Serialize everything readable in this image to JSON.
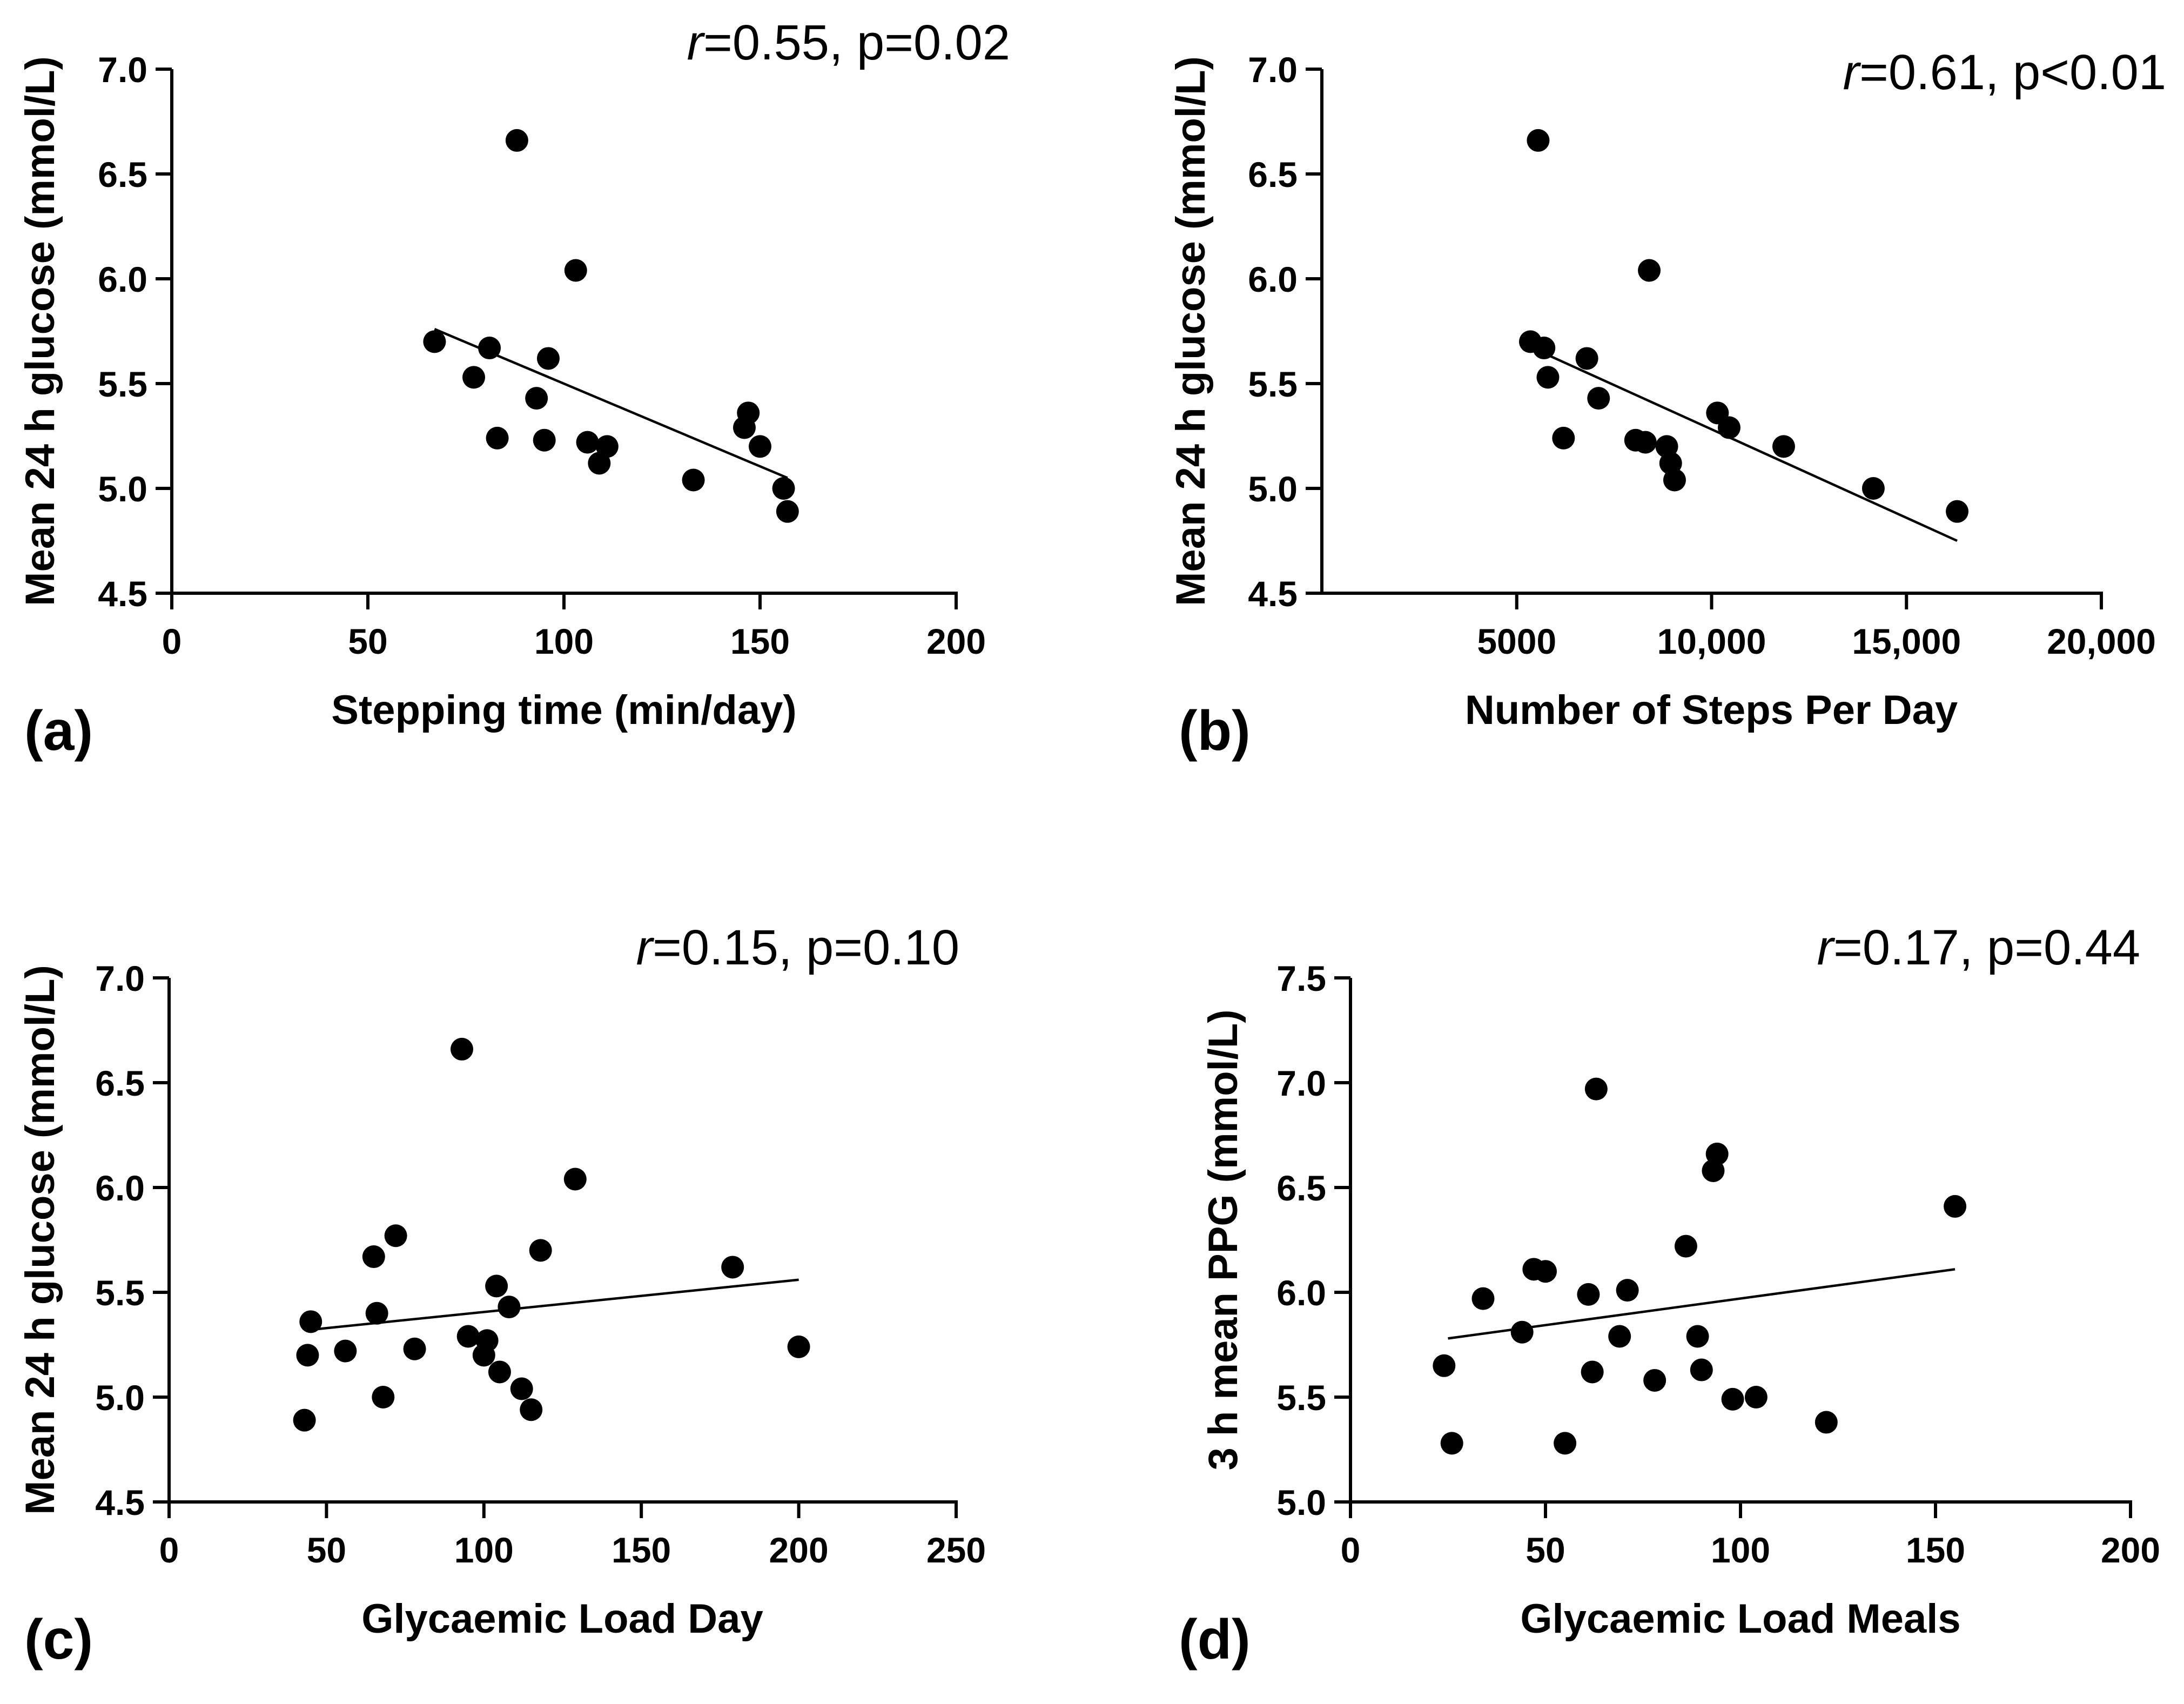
{
  "chart_data": [
    {
      "type": "scatter",
      "panel_label": "(a)",
      "annotation": {
        "r_symbol": "r",
        "text": "=0.55, p=0.02"
      },
      "xlabel": "Stepping time (min/day)",
      "ylabel": "Mean 24 h glucose (mmol/L)",
      "xlim": [
        0,
        200
      ],
      "ylim": [
        4.5,
        7.0
      ],
      "x_ticks": [
        {
          "value": 0,
          "label": "0"
        },
        {
          "value": 50,
          "label": "50"
        },
        {
          "value": 100,
          "label": "100"
        },
        {
          "value": 150,
          "label": "150"
        },
        {
          "value": 200,
          "label": "200"
        }
      ],
      "y_ticks": [
        {
          "value": 4.5,
          "label": "4.5"
        },
        {
          "value": 5.0,
          "label": "5.0"
        },
        {
          "value": 5.5,
          "label": "5.5"
        },
        {
          "value": 6.0,
          "label": "6.0"
        },
        {
          "value": 6.5,
          "label": "6.5"
        },
        {
          "value": 7.0,
          "label": "7.0"
        }
      ],
      "points": [
        {
          "x": 67,
          "y": 5.7
        },
        {
          "x": 77,
          "y": 5.53
        },
        {
          "x": 81,
          "y": 5.67
        },
        {
          "x": 83,
          "y": 5.24
        },
        {
          "x": 88,
          "y": 6.66
        },
        {
          "x": 93,
          "y": 5.43
        },
        {
          "x": 95,
          "y": 5.23
        },
        {
          "x": 96,
          "y": 5.62
        },
        {
          "x": 103,
          "y": 6.04
        },
        {
          "x": 106,
          "y": 5.22
        },
        {
          "x": 109,
          "y": 5.12
        },
        {
          "x": 111,
          "y": 5.2
        },
        {
          "x": 133,
          "y": 5.04
        },
        {
          "x": 146,
          "y": 5.29
        },
        {
          "x": 147,
          "y": 5.36
        },
        {
          "x": 150,
          "y": 5.2
        },
        {
          "x": 156,
          "y": 5.0
        },
        {
          "x": 157,
          "y": 4.89
        }
      ],
      "fit_line": {
        "x": [
          67,
          157
        ],
        "y": [
          5.76,
          5.05
        ]
      },
      "colors": {
        "marker": "#000000",
        "line": "#000000"
      }
    },
    {
      "type": "scatter",
      "panel_label": "(b)",
      "annotation": {
        "r_symbol": "r",
        "text": "=0.61, p<0.01"
      },
      "xlabel": "Number of Steps Per Day",
      "ylabel": "Mean 24 h glucose (mmol/L)",
      "xlim": [
        0,
        20000
      ],
      "ylim": [
        4.5,
        7.0
      ],
      "x_ticks": [
        {
          "value": 5000,
          "label": "5000"
        },
        {
          "value": 10000,
          "label": "10,000"
        },
        {
          "value": 15000,
          "label": "15,000"
        },
        {
          "value": 20000,
          "label": "20,000"
        }
      ],
      "y_ticks": [
        {
          "value": 4.5,
          "label": "4.5"
        },
        {
          "value": 5.0,
          "label": "5.0"
        },
        {
          "value": 5.5,
          "label": "5.5"
        },
        {
          "value": 6.0,
          "label": "6.0"
        },
        {
          "value": 6.5,
          "label": "6.5"
        },
        {
          "value": 7.0,
          "label": "7.0"
        }
      ],
      "points": [
        {
          "x": 5350,
          "y": 5.7
        },
        {
          "x": 5550,
          "y": 6.66
        },
        {
          "x": 5700,
          "y": 5.67
        },
        {
          "x": 5800,
          "y": 5.53
        },
        {
          "x": 6200,
          "y": 5.24
        },
        {
          "x": 6800,
          "y": 5.62
        },
        {
          "x": 7100,
          "y": 5.43
        },
        {
          "x": 8050,
          "y": 5.23
        },
        {
          "x": 8300,
          "y": 5.22
        },
        {
          "x": 8400,
          "y": 6.04
        },
        {
          "x": 8850,
          "y": 5.2
        },
        {
          "x": 8950,
          "y": 5.12
        },
        {
          "x": 9050,
          "y": 5.04
        },
        {
          "x": 10150,
          "y": 5.36
        },
        {
          "x": 10450,
          "y": 5.29
        },
        {
          "x": 11850,
          "y": 5.2
        },
        {
          "x": 14150,
          "y": 5.0
        },
        {
          "x": 16300,
          "y": 4.89
        }
      ],
      "fit_line": {
        "x": [
          5400,
          16300
        ],
        "y": [
          5.67,
          4.75
        ]
      },
      "colors": {
        "marker": "#000000",
        "line": "#000000"
      }
    },
    {
      "type": "scatter",
      "panel_label": "(c)",
      "annotation": {
        "r_symbol": "r",
        "text": "=0.15, p=0.10"
      },
      "xlabel": "Glycaemic Load Day",
      "ylabel": "Mean 24 h glucose (mmol/L)",
      "xlim": [
        0,
        250
      ],
      "ylim": [
        4.5,
        7.0
      ],
      "x_ticks": [
        {
          "value": 0,
          "label": "0"
        },
        {
          "value": 50,
          "label": "50"
        },
        {
          "value": 100,
          "label": "100"
        },
        {
          "value": 150,
          "label": "150"
        },
        {
          "value": 200,
          "label": "200"
        },
        {
          "value": 250,
          "label": "250"
        }
      ],
      "y_ticks": [
        {
          "value": 4.5,
          "label": "4.5"
        },
        {
          "value": 5.0,
          "label": "5.0"
        },
        {
          "value": 5.5,
          "label": "5.5"
        },
        {
          "value": 6.0,
          "label": "6.0"
        },
        {
          "value": 6.5,
          "label": "6.5"
        },
        {
          "value": 7.0,
          "label": "7.0"
        }
      ],
      "points": [
        {
          "x": 43,
          "y": 4.89
        },
        {
          "x": 44,
          "y": 5.2
        },
        {
          "x": 45,
          "y": 5.36
        },
        {
          "x": 56,
          "y": 5.22
        },
        {
          "x": 65,
          "y": 5.67
        },
        {
          "x": 66,
          "y": 5.4
        },
        {
          "x": 68,
          "y": 5.0
        },
        {
          "x": 72,
          "y": 5.77
        },
        {
          "x": 78,
          "y": 5.23
        },
        {
          "x": 93,
          "y": 6.66
        },
        {
          "x": 95,
          "y": 5.29
        },
        {
          "x": 100,
          "y": 5.2
        },
        {
          "x": 101,
          "y": 5.27
        },
        {
          "x": 104,
          "y": 5.53
        },
        {
          "x": 105,
          "y": 5.12
        },
        {
          "x": 108,
          "y": 5.43
        },
        {
          "x": 112,
          "y": 5.04
        },
        {
          "x": 115,
          "y": 4.94
        },
        {
          "x": 118,
          "y": 5.7
        },
        {
          "x": 129,
          "y": 6.04
        },
        {
          "x": 179,
          "y": 5.62
        },
        {
          "x": 200,
          "y": 5.24
        }
      ],
      "fit_line": {
        "x": [
          44,
          200
        ],
        "y": [
          5.32,
          5.56
        ]
      },
      "colors": {
        "marker": "#000000",
        "line": "#000000"
      }
    },
    {
      "type": "scatter",
      "panel_label": "(d)",
      "annotation": {
        "r_symbol": "r",
        "text": "=0.17, p=0.44"
      },
      "xlabel": "Glycaemic Load Meals",
      "ylabel": "3 h mean PPG (mmol/L)",
      "xlim": [
        0,
        200
      ],
      "ylim": [
        5.0,
        7.5
      ],
      "x_ticks": [
        {
          "value": 0,
          "label": "0"
        },
        {
          "value": 50,
          "label": "50"
        },
        {
          "value": 100,
          "label": "100"
        },
        {
          "value": 150,
          "label": "150"
        },
        {
          "value": 200,
          "label": "200"
        }
      ],
      "y_ticks": [
        {
          "value": 5.0,
          "label": "5.0"
        },
        {
          "value": 5.5,
          "label": "5.5"
        },
        {
          "value": 6.0,
          "label": "6.0"
        },
        {
          "value": 6.5,
          "label": "6.5"
        },
        {
          "value": 7.0,
          "label": "7.0"
        },
        {
          "value": 7.5,
          "label": "7.5"
        }
      ],
      "points": [
        {
          "x": 24,
          "y": 5.65
        },
        {
          "x": 26,
          "y": 5.28
        },
        {
          "x": 34,
          "y": 5.97
        },
        {
          "x": 44,
          "y": 5.81
        },
        {
          "x": 47,
          "y": 6.11
        },
        {
          "x": 50,
          "y": 6.1
        },
        {
          "x": 55,
          "y": 5.28
        },
        {
          "x": 61,
          "y": 5.99
        },
        {
          "x": 62,
          "y": 5.62
        },
        {
          "x": 63,
          "y": 6.97
        },
        {
          "x": 69,
          "y": 5.79
        },
        {
          "x": 71,
          "y": 6.01
        },
        {
          "x": 78,
          "y": 5.58
        },
        {
          "x": 86,
          "y": 6.22
        },
        {
          "x": 89,
          "y": 5.79
        },
        {
          "x": 90,
          "y": 5.63
        },
        {
          "x": 93,
          "y": 6.58
        },
        {
          "x": 94,
          "y": 6.66
        },
        {
          "x": 98,
          "y": 5.49
        },
        {
          "x": 104,
          "y": 5.5
        },
        {
          "x": 122,
          "y": 5.38
        },
        {
          "x": 155,
          "y": 6.41
        }
      ],
      "fit_line": {
        "x": [
          25,
          155
        ],
        "y": [
          5.78,
          6.11
        ]
      },
      "colors": {
        "marker": "#000000",
        "line": "#000000"
      }
    }
  ]
}
